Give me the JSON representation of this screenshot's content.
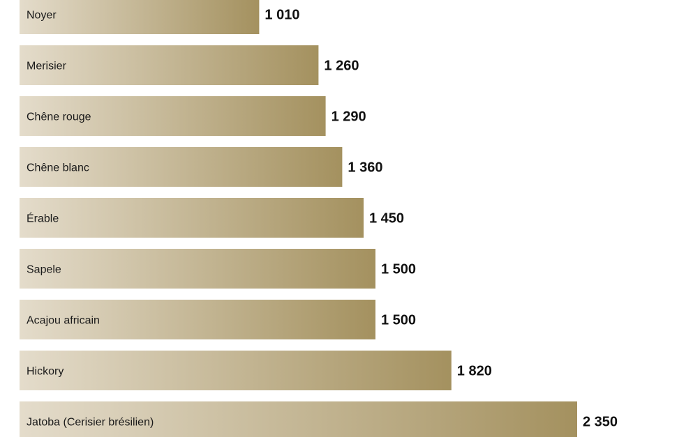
{
  "chart_data": {
    "type": "bar",
    "orientation": "horizontal",
    "categories": [
      "Noyer",
      "Merisier",
      "Chêne rouge",
      "Chêne blanc",
      "Érable",
      "Sapele",
      "Acajou africain",
      "Hickory",
      "Jatoba (Cerisier brésilien)"
    ],
    "values": [
      1010,
      1260,
      1290,
      1360,
      1450,
      1500,
      1500,
      1820,
      2350
    ],
    "value_labels": [
      "1 010",
      "1 260",
      "1 290",
      "1 360",
      "1 450",
      "1 500",
      "1 500",
      "1 820",
      "2 350"
    ],
    "title": "",
    "xlabel": "",
    "ylabel": "",
    "grid": false,
    "legend": "none",
    "colors": {
      "bar_start": "#e4dccb",
      "bar_end": "#a4915f"
    }
  }
}
